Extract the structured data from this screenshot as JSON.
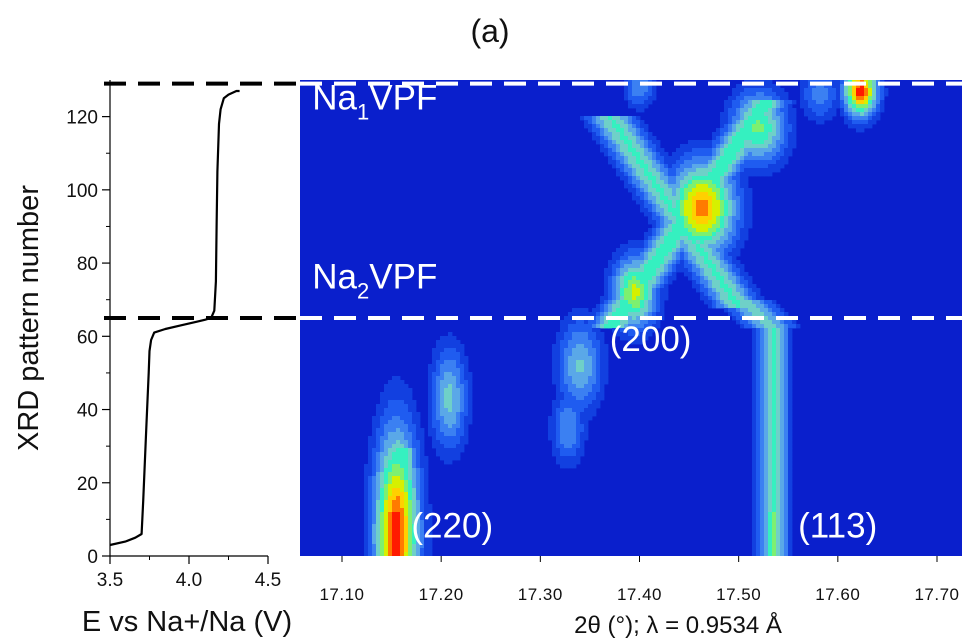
{
  "chart_data": [
    {
      "type": "line",
      "panel_label": "(a)",
      "xlabel": "E vs Na+/Na (V)",
      "ylabel": "XRD pattern number",
      "xlim": [
        3.5,
        4.5
      ],
      "ylim": [
        0,
        130
      ],
      "xticks": [
        "3.5",
        "4.0",
        "4.5"
      ],
      "yticks": [
        "0",
        "20",
        "40",
        "60",
        "80",
        "100",
        "120"
      ],
      "series": [
        {
          "x": [
            3.5,
            3.6,
            3.66,
            3.7,
            3.71,
            3.73,
            3.745,
            3.75,
            3.76,
            3.78,
            3.85,
            3.95,
            4.05,
            4.1,
            4.14,
            4.16,
            4.17,
            4.175,
            4.18,
            4.19,
            4.2,
            4.22,
            4.25,
            4.3,
            4.32
          ],
          "y": [
            3,
            4,
            5,
            6,
            15,
            35,
            50,
            56,
            59,
            61,
            62,
            63,
            64,
            64.5,
            65,
            67,
            75,
            90,
            105,
            118,
            122,
            125,
            126,
            127,
            127
          ]
        }
      ],
      "reference_lines": [
        {
          "y": 129,
          "style": "dashed",
          "color": "#000000"
        },
        {
          "y": 65,
          "style": "dashed",
          "color": "#000000"
        }
      ]
    },
    {
      "type": "heatmap",
      "xlabel": "2θ (°); λ = 0.9534 Å",
      "ylabel": "",
      "xlim": [
        17.05,
        17.73
      ],
      "ylim": [
        0,
        130
      ],
      "xticks": [
        "17.10",
        "17.20",
        "17.30",
        "17.40",
        "17.50",
        "17.60",
        "17.70"
      ],
      "palette": [
        "#0a1fcc",
        "#1240e0",
        "#1f5cf0",
        "#3b80f2",
        "#5aa8e8",
        "#6fd0c8",
        "#35f0c0",
        "#7df070",
        "#d6f000",
        "#ffd000",
        "#ff7a00",
        "#ff1a00"
      ],
      "annotations": [
        {
          "text": "Na",
          "sub": "1",
          "after": "VPF",
          "x": 17.07,
          "y": 122
        },
        {
          "text": "Na",
          "sub": "2",
          "after": "VPF",
          "x": 17.07,
          "y": 73
        },
        {
          "text": "(200)",
          "x": 17.37,
          "y": 56
        },
        {
          "text": "(220)",
          "x": 17.17,
          "y": 5
        },
        {
          "text": "(113)",
          "x": 17.56,
          "y": 5
        }
      ],
      "reference_lines": [
        {
          "y": 65,
          "style": "dashed",
          "color": "#ffffff"
        },
        {
          "y": 129,
          "style": "dashed",
          "color": "#ffffff"
        }
      ],
      "peaks": [
        {
          "x": 17.155,
          "y": 6,
          "sx": 0.016,
          "sy": 20,
          "amp": 1.0
        },
        {
          "x": 17.208,
          "y": 43,
          "sx": 0.013,
          "sy": 10,
          "amp": 0.48
        },
        {
          "x": 17.34,
          "y": 52,
          "sx": 0.016,
          "sy": 9,
          "amp": 0.46
        },
        {
          "x": 17.328,
          "y": 35,
          "sx": 0.012,
          "sy": 7,
          "amp": 0.36
        },
        {
          "x": 17.395,
          "y": 72,
          "sx": 0.016,
          "sy": 7,
          "amp": 0.75
        },
        {
          "x": 17.463,
          "y": 95,
          "sx": 0.024,
          "sy": 9,
          "amp": 0.92
        },
        {
          "x": 17.52,
          "y": 117,
          "sx": 0.02,
          "sy": 7,
          "amp": 0.65
        },
        {
          "x": 17.623,
          "y": 127,
          "sx": 0.012,
          "sy": 5,
          "amp": 1.0
        },
        {
          "x": 17.582,
          "y": 126,
          "sx": 0.014,
          "sy": 5,
          "amp": 0.32
        },
        {
          "x": 17.4,
          "y": 128,
          "sx": 0.011,
          "sy": 4,
          "amp": 0.35
        }
      ],
      "ridges": [
        {
          "x0": 17.37,
          "y0": 62,
          "x1": 17.53,
          "y1": 125,
          "w": 0.016,
          "amp": 0.6
        },
        {
          "x0": 17.37,
          "y0": 120,
          "x1": 17.5,
          "y1": 68,
          "w": 0.017,
          "amp": 0.55
        },
        {
          "x0": 17.505,
          "y0": 70,
          "x1": 17.535,
          "y1": 62,
          "w": 0.018,
          "amp": 0.48
        },
        {
          "x0": 17.535,
          "y0": 62,
          "x1": 17.535,
          "y1": 0,
          "w": 0.011,
          "amp": 0.55
        },
        {
          "x0": 17.535,
          "y0": 0,
          "x1": 17.535,
          "y1": 12,
          "w": 0.007,
          "amp": 0.66
        },
        {
          "x0": 17.155,
          "y0": 0,
          "x1": 17.16,
          "y1": 30,
          "w": 0.012,
          "amp": 0.62
        }
      ]
    }
  ]
}
